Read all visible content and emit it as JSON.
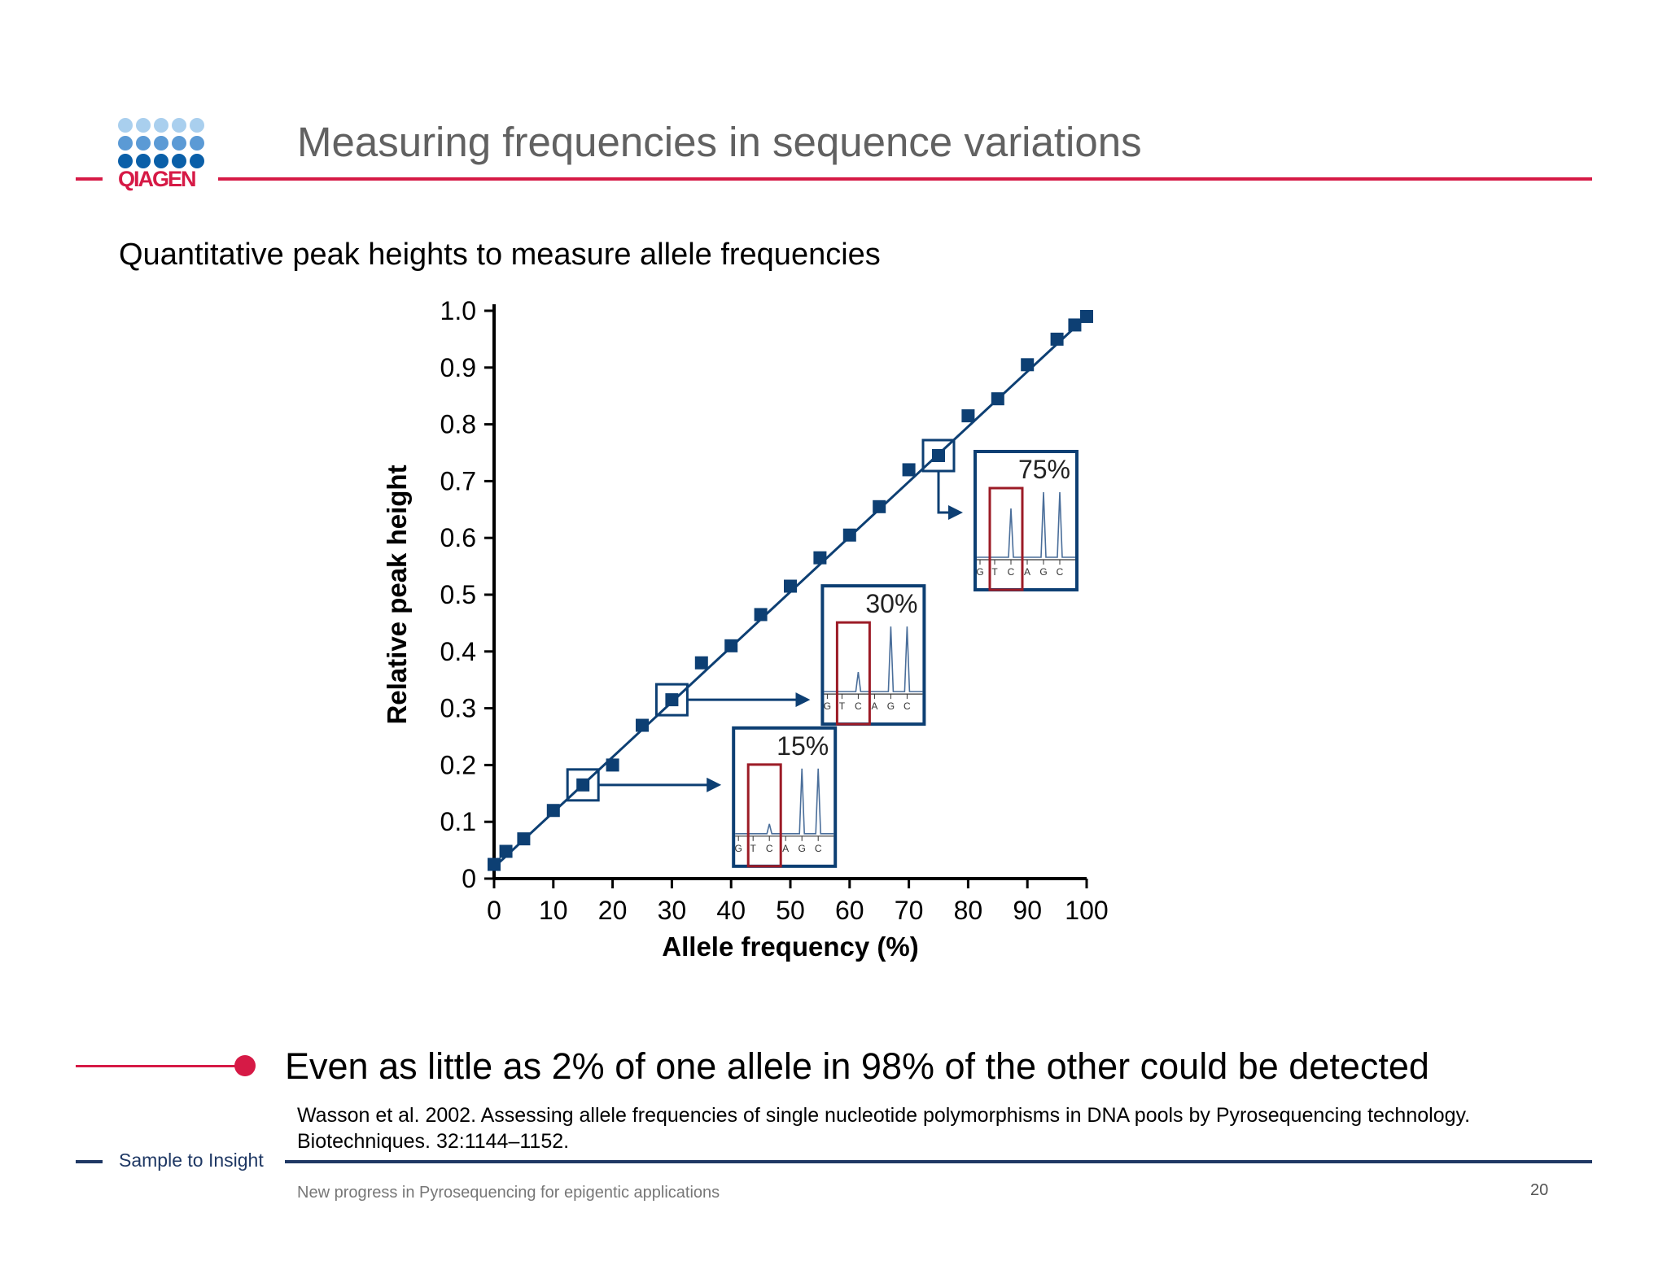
{
  "colors": {
    "accent_red": "#d61a46",
    "navy": "#1f3864",
    "title_gray": "#616161",
    "logo_dots": [
      "#a9cfee",
      "#5b9ad5",
      "#0a5fa8"
    ],
    "logo_text": "#d61a46",
    "chart_mark": "#0d3f73",
    "inset_window": "#9c1b26"
  },
  "logo": {
    "text": "QIAGEN"
  },
  "slide": {
    "title": "Measuring frequencies in sequence variations",
    "subtitle": "Quantitative peak heights to measure allele frequencies",
    "bullet": "Even as little as 2% of one allele in 98% of the other could be detected",
    "reference": "Wasson et al. 2002. Assessing allele frequencies of single nucleotide polymorphisms in DNA pools by Pyrosequencing technology. Biotechniques. 32:1144–1152.",
    "tagline": "Sample to Insight",
    "footer": "New progress in Pyrosequencing for epigentic applications",
    "page_number": "20"
  },
  "chart_data": {
    "type": "scatter",
    "xlabel": "Allele frequency (%)",
    "ylabel": "Relative peak height",
    "xlim": [
      0,
      100
    ],
    "ylim": [
      0,
      1.0
    ],
    "xticks": [
      "0",
      "10",
      "20",
      "30",
      "40",
      "50",
      "60",
      "70",
      "80",
      "90",
      "100"
    ],
    "yticks": [
      "0",
      "0.1",
      "0.2",
      "0.3",
      "0.4",
      "0.5",
      "0.6",
      "0.7",
      "0.8",
      "0.9",
      "1.0"
    ],
    "grid": false,
    "fit_line": {
      "from": [
        0,
        0.02
      ],
      "to": [
        100,
        0.99
      ]
    },
    "points": [
      {
        "x": 0,
        "y": 0.025
      },
      {
        "x": 2,
        "y": 0.048
      },
      {
        "x": 5,
        "y": 0.07
      },
      {
        "x": 10,
        "y": 0.12
      },
      {
        "x": 15,
        "y": 0.165
      },
      {
        "x": 20,
        "y": 0.2
      },
      {
        "x": 25,
        "y": 0.27
      },
      {
        "x": 30,
        "y": 0.315
      },
      {
        "x": 35,
        "y": 0.38
      },
      {
        "x": 40,
        "y": 0.41
      },
      {
        "x": 45,
        "y": 0.465
      },
      {
        "x": 50,
        "y": 0.515
      },
      {
        "x": 55,
        "y": 0.565
      },
      {
        "x": 60,
        "y": 0.605
      },
      {
        "x": 65,
        "y": 0.655
      },
      {
        "x": 70,
        "y": 0.72
      },
      {
        "x": 75,
        "y": 0.745
      },
      {
        "x": 80,
        "y": 0.815
      },
      {
        "x": 85,
        "y": 0.845
      },
      {
        "x": 90,
        "y": 0.905
      },
      {
        "x": 95,
        "y": 0.95
      },
      {
        "x": 98,
        "y": 0.975
      },
      {
        "x": 100,
        "y": 0.99
      }
    ],
    "highlighted": [
      {
        "x": 15,
        "y": 0.165,
        "label": "15%",
        "bases": [
          "G",
          "T",
          "C",
          "A",
          "G",
          "C"
        ],
        "peaks": [
          0.15,
          1.0,
          1.0
        ]
      },
      {
        "x": 30,
        "y": 0.315,
        "label": "30%",
        "bases": [
          "G",
          "T",
          "C",
          "A",
          "G",
          "C"
        ],
        "peaks": [
          0.3,
          1.0,
          1.0
        ]
      },
      {
        "x": 75,
        "y": 0.745,
        "label": "75%",
        "bases": [
          "G",
          "T",
          "C",
          "A",
          "G",
          "C"
        ],
        "peaks": [
          0.75,
          1.0,
          1.0
        ]
      }
    ]
  }
}
